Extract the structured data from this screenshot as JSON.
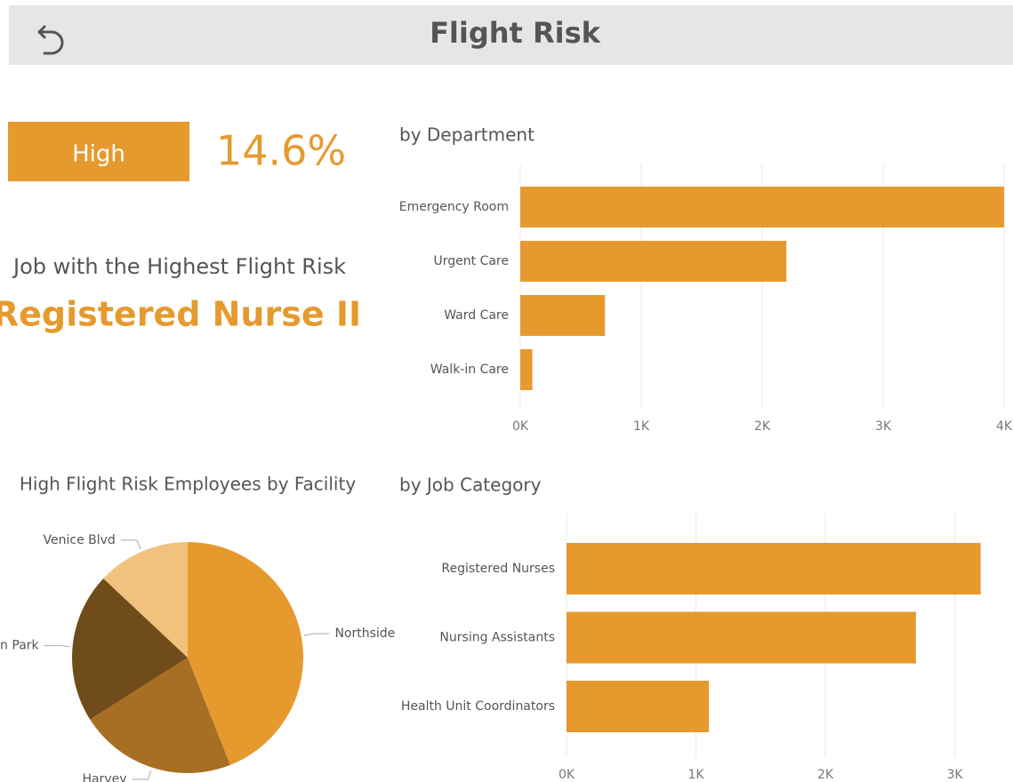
{
  "header": {
    "title": "Flight Risk"
  },
  "kpi": {
    "level": "High",
    "rate": "14.6%",
    "job_caption": "Job with the Highest Flight Risk",
    "job": "Registered Nurse II"
  },
  "chart_data": [
    {
      "type": "bar",
      "orientation": "horizontal",
      "title": "by Department",
      "color": "#e69a2e",
      "grid": true,
      "categories": [
        "Emergency Room",
        "Urgent Care",
        "Ward Care",
        "Walk-in Care"
      ],
      "values": [
        4000,
        2200,
        700,
        100
      ],
      "xlim": [
        0,
        4000
      ],
      "xticks": [
        {
          "value": 0,
          "label": "0K"
        },
        {
          "value": 1000,
          "label": "1K"
        },
        {
          "value": 2000,
          "label": "2K"
        },
        {
          "value": 3000,
          "label": "3K"
        },
        {
          "value": 4000,
          "label": "4K"
        }
      ]
    },
    {
      "type": "pie",
      "title": "High Flight Risk Employees by Facility",
      "categories": [
        "Northside",
        "Harvey",
        "ton Park",
        "Venice Blvd"
      ],
      "values": [
        44,
        22,
        21,
        13
      ],
      "colors": [
        "#e69a2e",
        "#a86f24",
        "#714c1b",
        "#f0c27d"
      ]
    },
    {
      "type": "bar",
      "orientation": "horizontal",
      "title": "by Job Category",
      "color": "#e69a2e",
      "grid": true,
      "categories": [
        "Registered Nurses",
        "Nursing Assistants",
        "Health Unit Coordinators"
      ],
      "values": [
        3200,
        2700,
        1100
      ],
      "xlim": [
        0,
        3450
      ],
      "xticks": [
        {
          "value": 0,
          "label": "0K"
        },
        {
          "value": 1000,
          "label": "1K"
        },
        {
          "value": 2000,
          "label": "2K"
        },
        {
          "value": 3000,
          "label": "3K"
        }
      ]
    }
  ]
}
